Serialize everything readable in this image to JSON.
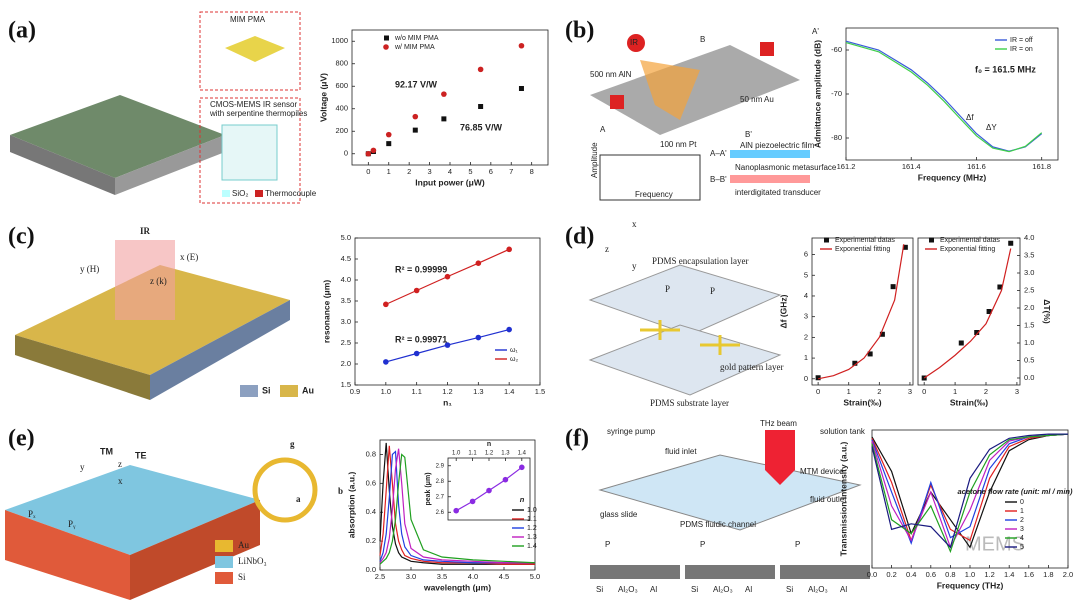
{
  "panels": [
    {
      "label": "(a)",
      "labels": [
        "MIM PMA",
        "CMOS-MEMS IR sensor",
        "with serpentine thermopiles",
        "SiO₂",
        "Thermocouple"
      ],
      "charts": [
        {
          "type": "scatter",
          "x": [
            0,
            0.25,
            1,
            2.3,
            3.7,
            5.5,
            7.5
          ],
          "xlim": [
            -0.8,
            8.8
          ],
          "ylim": [
            -100,
            1100
          ],
          "xticks": [
            0,
            1,
            2,
            3,
            4,
            5,
            6,
            7,
            8
          ],
          "yticks": [
            0,
            200,
            400,
            600,
            800,
            1000
          ],
          "x_label": "Input power (μW)",
          "y_label": "Voltage (μV)",
          "series": [
            {
              "name": "w/o MIM PMA",
              "color": "#111111",
              "marker": "square",
              "values": [
                0,
                20,
                90,
                210,
                310,
                420,
                580
              ]
            },
            {
              "name": "w/ MIM PMA",
              "color": "#cc2222",
              "marker": "circle",
              "values": [
                0,
                30,
                170,
                330,
                530,
                750,
                960
              ]
            }
          ],
          "annotations": [
            "92.17 V/W",
            "76.85 V/W"
          ]
        }
      ]
    },
    {
      "label": "(b)",
      "labels": [
        "IR",
        "500 nm AlN",
        "50 nm Au",
        "100 nm Pt",
        "A",
        "A'",
        "B",
        "B'",
        "A–A'",
        "AlN piezoelectric film",
        "Nanoplasmonic metasurface",
        "B–B'",
        "interdigitated transducer",
        "Amplitude",
        "Frequency",
        "Δf",
        "ΔY"
      ],
      "charts": [
        {
          "type": "line",
          "x": [
            161.2,
            161.3,
            161.4,
            161.45,
            161.5,
            161.55,
            161.6,
            161.65,
            161.7,
            161.75,
            161.8
          ],
          "xlim": [
            161.2,
            161.85
          ],
          "ylim": [
            -85,
            -55
          ],
          "xticks": [
            161.2,
            161.4,
            161.6,
            161.8
          ],
          "yticks": [
            -60,
            -70,
            -80
          ],
          "x_label": "Frequency (MHz)",
          "y_label": "Admittance amplitude (dB)",
          "series": [
            {
              "name": "IR = off",
              "color": "#3a5bd9",
              "values": [
                -58,
                -60,
                -64.5,
                -67.5,
                -71,
                -75,
                -79,
                -82,
                -83,
                -82,
                -79
              ]
            },
            {
              "name": "IR = on",
              "color": "#3fcf4a",
              "values": [
                -58.3,
                -60.4,
                -65,
                -68,
                -71.6,
                -75.6,
                -79.5,
                -82.3,
                -83.1,
                -81.9,
                -78.8
              ]
            }
          ],
          "annotations": [
            "f₀ = 161.5 MHz"
          ]
        }
      ]
    },
    {
      "label": "(c)",
      "labels": [
        "IR",
        "x (E)",
        "y (H)",
        "z (k)",
        "Si",
        "Au"
      ],
      "charts": [
        {
          "type": "line",
          "x": [
            1.0,
            1.1,
            1.2,
            1.3,
            1.4
          ],
          "xlim": [
            0.9,
            1.5
          ],
          "ylim": [
            1.5,
            5.0
          ],
          "xticks": [
            0.9,
            {
              "value": 1,
              "label": "1.0"
            },
            1.1,
            1.2,
            1.3,
            1.4,
            1.5
          ],
          "yticks": [
            1.5,
            {
              "value": 2,
              "label": "2.0"
            },
            2.5,
            {
              "value": 3,
              "label": "3.0"
            },
            3.5,
            {
              "value": 4,
              "label": "4.0"
            },
            4.5,
            {
              "value": 5,
              "label": "5.0"
            }
          ],
          "x_label": "n₁",
          "y_label": "resonance (μm)",
          "series": [
            {
              "name": "ω₁",
              "color": "#2030d0",
              "marker": "circle",
              "values": [
                2.05,
                2.25,
                2.45,
                2.63,
                2.82
              ]
            },
            {
              "name": "ω₂",
              "color": "#d02020",
              "marker": "circle",
              "values": [
                3.42,
                3.75,
                4.08,
                4.4,
                4.73
              ]
            }
          ],
          "annotations": [
            "R² = 0.99999",
            "R² = 0.99971"
          ]
        }
      ]
    },
    {
      "label": "(d)",
      "labels": [
        "x",
        "y",
        "z",
        "PDMS encapsulation layer",
        "P",
        "P",
        "gold pattern layer",
        "PDMS substrate layer"
      ],
      "charts": [
        {
          "type": "scatter",
          "xlim": [
            -0.2,
            3.1
          ],
          "ylim": [
            -0.3,
            6.8
          ],
          "xticks": [
            0,
            1,
            2,
            3
          ],
          "yticks": [
            0,
            1,
            2,
            3,
            4,
            5,
            6
          ],
          "x_label": "Strain(‰)",
          "y_label": "Δf (GHz)",
          "series": [
            {
              "name": "Experimental datas",
              "color": "#111111",
              "marker": "square",
              "x": [
                0,
                1.2,
                1.7,
                2.1,
                2.45,
                2.85
              ],
              "values": [
                0.05,
                0.75,
                1.2,
                2.15,
                4.45,
                6.35
              ]
            },
            {
              "name": "Exponential fitting",
              "color": "#d02020",
              "x": [
                0,
                0.5,
                1,
                1.5,
                2,
                2.5,
                2.8
              ],
              "values": [
                0,
                0.15,
                0.45,
                1,
                2,
                3.8,
                6.5
              ]
            }
          ]
        },
        {
          "type": "scatter",
          "xlim": [
            -0.2,
            3.1
          ],
          "ylim": [
            -0.2,
            4.0
          ],
          "xticks": [
            0,
            1,
            2,
            3
          ],
          "yticks": [
            {
              "value": 0,
              "label": "0.0"
            },
            0.5,
            {
              "value": 1,
              "label": "1.0"
            },
            1.5,
            {
              "value": 2,
              "label": "2.0"
            },
            2.5,
            {
              "value": 3,
              "label": "3.0"
            },
            3.5,
            {
              "value": 4,
              "label": "4.0"
            }
          ],
          "x_label": "Strain(‰)",
          "y_label": "ΔT(%)",
          "series": [
            {
              "name": "Experimental datas",
              "color": "#111111",
              "marker": "square",
              "x": [
                0,
                1.2,
                1.7,
                2.1,
                2.45,
                2.8
              ],
              "values": [
                0,
                1,
                1.3,
                1.9,
                2.6,
                3.85
              ]
            },
            {
              "name": "Exponential fitting",
              "color": "#d02020",
              "x": [
                0,
                0.5,
                1,
                1.5,
                2,
                2.5,
                2.8
              ],
              "values": [
                0,
                0.3,
                0.65,
                1.05,
                1.55,
                2.5,
                3.7
              ]
            }
          ]
        }
      ]
    },
    {
      "label": "(e)",
      "labels": [
        "TM",
        "TE",
        "y",
        "z",
        "x",
        "Pₓ",
        "Pᵧ",
        "g",
        "a",
        "b",
        "Au",
        "LiNbO₃",
        "Si"
      ],
      "charts": [
        {
          "type": "line",
          "x": [
            2.5,
            2.55,
            2.6,
            2.65,
            2.7,
            2.75,
            2.8,
            2.85,
            2.9,
            3.0,
            3.2,
            3.5,
            4.0,
            4.5,
            5.0
          ],
          "xlim": [
            2.5,
            5.0
          ],
          "ylim": [
            0,
            0.9
          ],
          "xticks": [
            2.5,
            {
              "value": 3,
              "label": "3.0"
            },
            3.5,
            {
              "value": 4,
              "label": "4.0"
            },
            4.5,
            {
              "value": 5,
              "label": "5.0"
            }
          ],
          "yticks": [
            {
              "value": 0,
              "label": "0.0"
            },
            0.2,
            0.4,
            0.6,
            0.8
          ],
          "x_label": "wavelength (μm)",
          "y_label": "absorption (a.u.)",
          "legend_title": "n",
          "series": [
            {
              "name": "1.0",
              "color": "#111111",
              "values": [
                0.2,
                0.6,
                0.88,
                0.55,
                0.3,
                0.18,
                0.12,
                0.09,
                0.08,
                0.06,
                0.05,
                0.04,
                0.04,
                0.04,
                0.04
              ]
            },
            {
              "name": "1.1",
              "color": "#e02020",
              "values": [
                0.1,
                0.25,
                0.55,
                0.86,
                0.6,
                0.32,
                0.2,
                0.14,
                0.1,
                0.08,
                0.06,
                0.05,
                0.05,
                0.04,
                0.04
              ]
            },
            {
              "name": "1.2",
              "color": "#2040e0",
              "values": [
                0.06,
                0.12,
                0.25,
                0.5,
                0.8,
                0.82,
                0.45,
                0.25,
                0.16,
                0.1,
                0.07,
                0.06,
                0.05,
                0.05,
                0.05
              ]
            },
            {
              "name": "1.3",
              "color": "#c020c0",
              "values": [
                0.05,
                0.08,
                0.12,
                0.22,
                0.42,
                0.7,
                0.84,
                0.6,
                0.32,
                0.15,
                0.09,
                0.07,
                0.06,
                0.05,
                0.05
              ]
            },
            {
              "name": "1.4",
              "color": "#20a020",
              "values": [
                0.04,
                0.06,
                0.08,
                0.12,
                0.2,
                0.35,
                0.6,
                0.8,
                0.78,
                0.35,
                0.14,
                0.09,
                0.07,
                0.06,
                0.05
              ]
            }
          ]
        },
        {
          "type": "line",
          "x": [
            1.0,
            1.1,
            1.2,
            1.3,
            1.4
          ],
          "xlim": [
            0.95,
            1.45
          ],
          "ylim": [
            2.55,
            2.95
          ],
          "xticks": [
            {
              "value": 1,
              "label": "1.0"
            },
            1.1,
            1.2,
            1.3,
            1.4
          ],
          "yticks": [
            2.6,
            2.7,
            2.8,
            2.9
          ],
          "x_label": "n",
          "y_label": "peak (μm)",
          "series": [
            {
              "color": "#8a2be2",
              "marker": "circle",
              "values": [
                2.61,
                2.67,
                2.74,
                2.81,
                2.89
              ]
            }
          ]
        }
      ]
    },
    {
      "label": "(f)",
      "labels": [
        "syringe pump",
        "fluid inlet",
        "THz beam",
        "solution tank",
        "MTM device",
        "fluid outlet",
        "glass slide",
        "PDMS fluidic channel",
        "P",
        "P",
        "P",
        "Si",
        "Al₂O₃",
        "Al",
        "Si",
        "Al₂O₃",
        "Al",
        "Si",
        "Al₂O₃",
        "Al",
        "MEMS"
      ],
      "charts": [
        {
          "type": "line",
          "x": [
            0,
            0.2,
            0.4,
            0.6,
            0.8,
            1.0,
            1.2,
            1.4,
            1.6,
            1.8,
            2.0
          ],
          "xlim": [
            0,
            2
          ],
          "ylim": [
            0,
            1
          ],
          "xticks": [
            {
              "value": 0,
              "label": "0.0"
            },
            0.2,
            0.4,
            0.6,
            0.8,
            {
              "value": 1,
              "label": "1.0"
            },
            1.2,
            1.4,
            1.6,
            1.8,
            {
              "value": 2,
              "label": "2.0"
            }
          ],
          "x_label": "Frequency (THz)",
          "y_label": "Transmission Intensity (a.u.)",
          "legend_title": "acetone flow rate (unit: ml / min)",
          "series": [
            {
              "name": "0",
              "color": "#111111",
              "values": [
                0.95,
                0.7,
                0.25,
                0.55,
                0.35,
                0.15,
                0.55,
                0.85,
                0.93,
                0.96,
                0.97
              ]
            },
            {
              "name": "1",
              "color": "#e02020",
              "values": [
                0.94,
                0.62,
                0.2,
                0.6,
                0.28,
                0.2,
                0.65,
                0.88,
                0.94,
                0.96,
                0.97
              ]
            },
            {
              "name": "2",
              "color": "#2040e0",
              "values": [
                0.93,
                0.55,
                0.18,
                0.62,
                0.22,
                0.3,
                0.72,
                0.9,
                0.95,
                0.96,
                0.97
              ]
            },
            {
              "name": "3",
              "color": "#c020c0",
              "values": [
                0.92,
                0.45,
                0.2,
                0.55,
                0.15,
                0.42,
                0.78,
                0.92,
                0.95,
                0.96,
                0.97
              ]
            },
            {
              "name": "4",
              "color": "#20a020",
              "values": [
                0.9,
                0.35,
                0.25,
                0.45,
                0.12,
                0.55,
                0.82,
                0.93,
                0.95,
                0.96,
                0.97
              ]
            },
            {
              "name": "5",
              "color": "#1a1a80",
              "values": [
                0.88,
                0.28,
                0.32,
                0.3,
                0.15,
                0.65,
                0.86,
                0.94,
                0.96,
                0.97,
                0.97
              ]
            }
          ]
        }
      ]
    }
  ]
}
